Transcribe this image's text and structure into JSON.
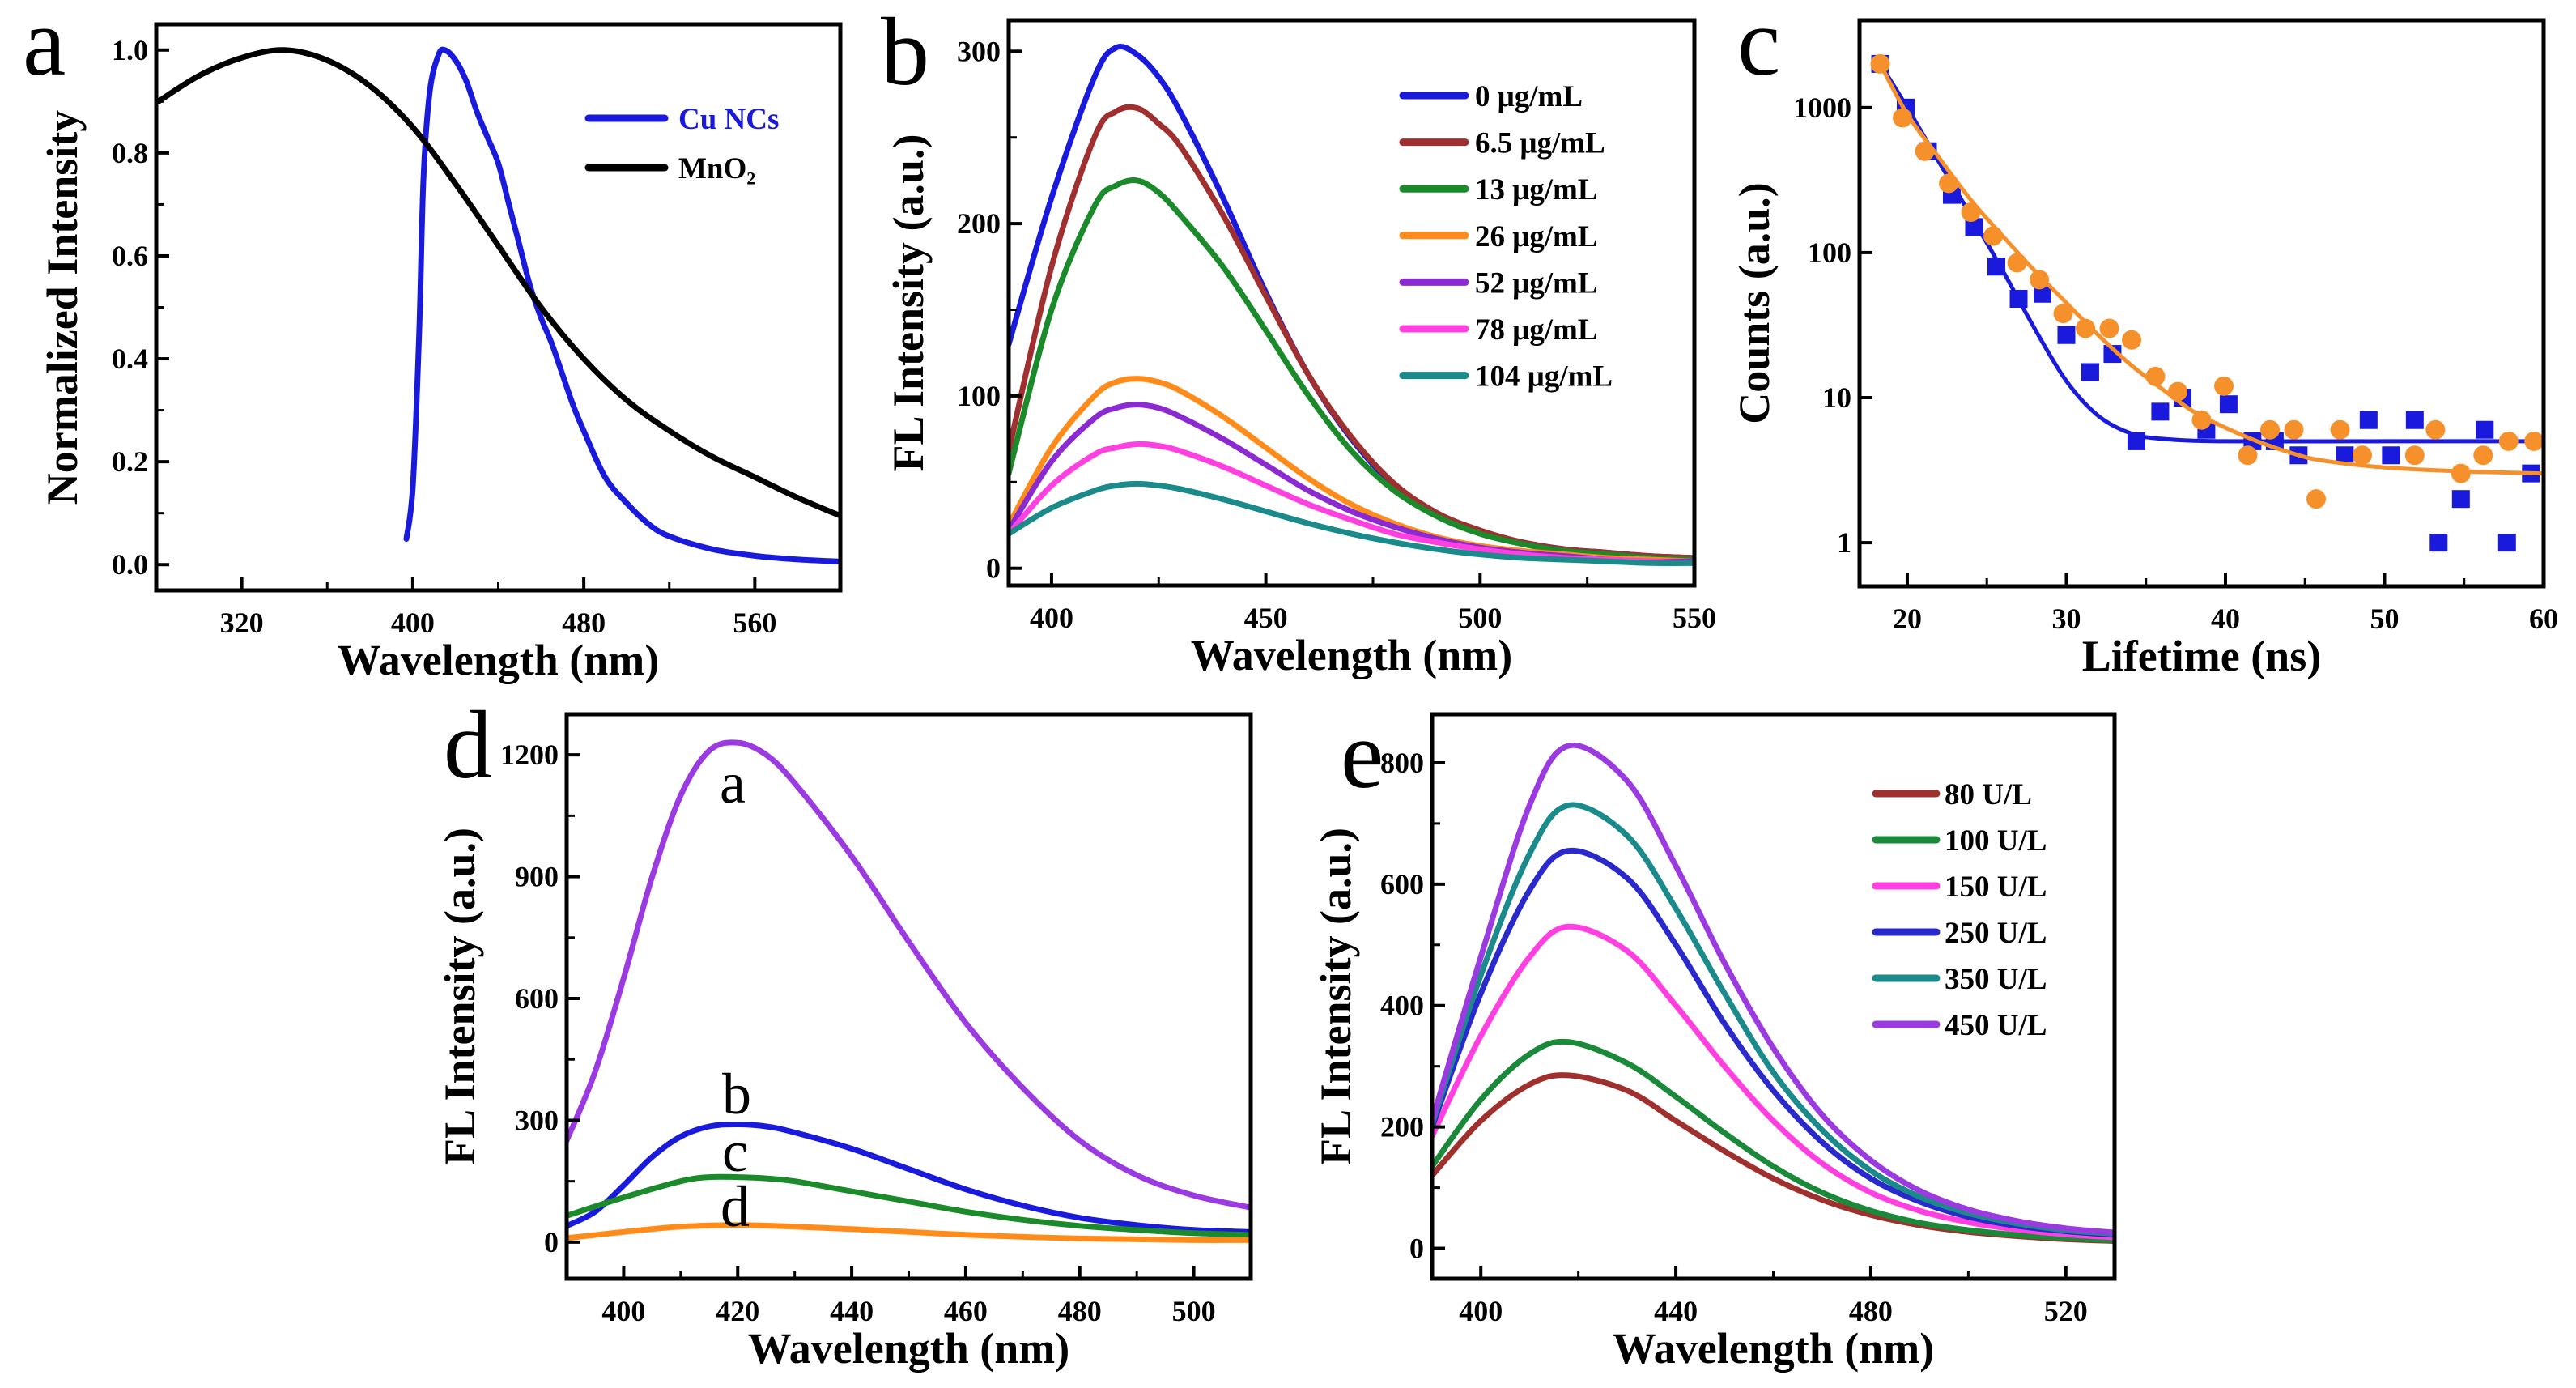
{
  "chart_data": [
    {
      "panel_label": "a",
      "type": "line",
      "xlabel": "Wavelength (nm)",
      "ylabel": "Normalized Intensity",
      "xlim": [
        280,
        600
      ],
      "ylim": [
        -0.05,
        1.05
      ],
      "xtick_labels": [
        "320",
        "400",
        "480",
        "560"
      ],
      "ytick_labels": [
        "0.0",
        "0.2",
        "0.4",
        "0.6",
        "0.8",
        "1.0"
      ],
      "yscale": "linear",
      "grid": false,
      "legend": "top-right",
      "series": [
        {
          "name": "Cu NCs",
          "color": "#1a1adc",
          "legend_text_color": "#1a1adc",
          "x": [
            397,
            400,
            403,
            405,
            408,
            412,
            415,
            420,
            425,
            430,
            435,
            440,
            445,
            450,
            455,
            460,
            465,
            470,
            475,
            480,
            490,
            500,
            510,
            520,
            540,
            560,
            580,
            600
          ],
          "y": [
            0.05,
            0.15,
            0.45,
            0.75,
            0.92,
            0.99,
            1.0,
            0.98,
            0.94,
            0.88,
            0.83,
            0.78,
            0.7,
            0.62,
            0.54,
            0.48,
            0.43,
            0.37,
            0.31,
            0.26,
            0.17,
            0.12,
            0.08,
            0.055,
            0.03,
            0.017,
            0.01,
            0.006
          ]
        },
        {
          "name": "MnO₂",
          "color": "#000000",
          "legend_text_color": "#000000",
          "x": [
            281,
            300,
            320,
            340,
            360,
            380,
            400,
            420,
            440,
            460,
            480,
            500,
            520,
            540,
            560,
            580,
            600
          ],
          "y": [
            0.9,
            0.95,
            0.985,
            1.0,
            0.98,
            0.93,
            0.85,
            0.74,
            0.62,
            0.5,
            0.4,
            0.32,
            0.26,
            0.21,
            0.17,
            0.13,
            0.095
          ]
        }
      ]
    },
    {
      "panel_label": "b",
      "type": "line",
      "xlabel": "Wavelength (nm)",
      "ylabel": "FL Intensity (a.u.)",
      "xlim": [
        390,
        550
      ],
      "ylim": [
        -10,
        318
      ],
      "xtick_labels": [
        "400",
        "450",
        "500",
        "550"
      ],
      "ytick_labels": [
        "0",
        "100",
        "200",
        "300"
      ],
      "yscale": "linear",
      "grid": false,
      "legend": "top-right",
      "series": [
        {
          "name": "0 μg/mL",
          "color": "#1a1adc",
          "x": [
            390,
            400,
            410,
            415,
            420,
            425,
            430,
            440,
            450,
            460,
            470,
            480,
            490,
            500,
            510,
            520,
            530,
            540,
            550
          ],
          "y": [
            130,
            215,
            285,
            302,
            298,
            285,
            265,
            215,
            160,
            112,
            75,
            48,
            31,
            21,
            15,
            11,
            9,
            7,
            6
          ]
        },
        {
          "name": "6.5 μg/mL",
          "color": "#a03030",
          "x": [
            390,
            400,
            410,
            415,
            420,
            425,
            430,
            440,
            450,
            460,
            470,
            480,
            490,
            500,
            510,
            520,
            530,
            540,
            550
          ],
          "y": [
            68,
            175,
            250,
            265,
            267,
            258,
            245,
            205,
            158,
            112,
            76,
            49,
            32,
            22,
            15,
            11,
            9,
            7,
            6
          ]
        },
        {
          "name": "13 μg/mL",
          "color": "#1a8a2a",
          "x": [
            390,
            400,
            410,
            415,
            420,
            425,
            430,
            440,
            450,
            460,
            470,
            480,
            490,
            500,
            510,
            520,
            530,
            540,
            550
          ],
          "y": [
            55,
            150,
            210,
            222,
            225,
            218,
            205,
            175,
            138,
            100,
            68,
            45,
            30,
            20,
            14,
            10,
            8,
            6,
            5
          ]
        },
        {
          "name": "26 μg/mL",
          "color": "#ff8c1a",
          "x": [
            390,
            400,
            410,
            415,
            420,
            425,
            430,
            440,
            450,
            460,
            470,
            480,
            490,
            500,
            510,
            520,
            530,
            540,
            550
          ],
          "y": [
            25,
            70,
            100,
            108,
            110,
            108,
            103,
            88,
            70,
            52,
            37,
            26,
            18,
            13,
            10,
            8,
            6,
            5,
            4
          ]
        },
        {
          "name": "52 μg/mL",
          "color": "#8a2ad0",
          "x": [
            390,
            400,
            410,
            415,
            420,
            425,
            430,
            440,
            450,
            460,
            470,
            480,
            490,
            500,
            510,
            520,
            530,
            540,
            550
          ],
          "y": [
            22,
            62,
            87,
            93,
            95,
            93,
            88,
            75,
            60,
            45,
            33,
            24,
            17,
            12,
            9,
            7,
            5,
            4,
            4
          ]
        },
        {
          "name": "78 μg/mL",
          "color": "#ff40e0",
          "x": [
            390,
            400,
            410,
            415,
            420,
            425,
            430,
            440,
            450,
            460,
            470,
            480,
            490,
            500,
            510,
            520,
            530,
            540,
            550
          ],
          "y": [
            20,
            48,
            66,
            70,
            72,
            71,
            68,
            59,
            48,
            37,
            28,
            20,
            15,
            11,
            8,
            6,
            5,
            4,
            3
          ]
        },
        {
          "name": "104 μg/mL",
          "color": "#1a8a8a",
          "x": [
            390,
            400,
            410,
            415,
            420,
            425,
            430,
            440,
            450,
            460,
            470,
            480,
            490,
            500,
            510,
            520,
            530,
            540,
            550
          ],
          "y": [
            20,
            35,
            45,
            48,
            49,
            48,
            46,
            40,
            33,
            26,
            20,
            15,
            11,
            8,
            6,
            5,
            4,
            3,
            3
          ]
        }
      ]
    },
    {
      "panel_label": "c",
      "type": "scatter",
      "xlabel": "Lifetime (ns)",
      "ylabel": "Counts (a.u.)",
      "xlim": [
        17,
        60
      ],
      "ylim": [
        0.5,
        4000
      ],
      "xtick_labels": [
        "20",
        "30",
        "40",
        "50",
        "60"
      ],
      "ytick_labels": [
        "1",
        "10",
        "100",
        "1000"
      ],
      "yscale": "log",
      "grid": false,
      "legend": "none",
      "series": [
        {
          "marker": "square",
          "color": "#1a1adc",
          "x": [
            18.3,
            19.9,
            21.3,
            22.8,
            24.2,
            25.6,
            27.0,
            28.5,
            30.0,
            31.5,
            32.9,
            34.4,
            35.9,
            37.3,
            38.8,
            40.2,
            41.7,
            43.1,
            44.6,
            47.5,
            49.0,
            50.4,
            51.9,
            53.4,
            54.8,
            56.3,
            57.7,
            59.2
          ],
          "y": [
            2000,
            1000,
            500,
            250,
            150,
            80,
            48,
            52,
            27,
            15,
            20,
            5,
            8,
            10,
            6,
            9,
            5,
            5,
            4,
            4,
            7,
            4,
            7,
            1,
            2,
            6,
            1,
            3
          ],
          "fit": {
            "x": [
              18.3,
              20,
              22,
              24,
              26,
              28,
              30,
              32,
              34,
              36,
              40,
              50,
              60
            ],
            "y": [
              2000,
              1000,
              420,
              180,
              75,
              30,
              13,
              7.5,
              5.7,
              5.2,
              5,
              5,
              5
            ]
          }
        },
        {
          "marker": "circle",
          "color": "#f5902a",
          "x": [
            18.3,
            19.7,
            21.1,
            22.6,
            24.0,
            25.4,
            26.9,
            28.3,
            29.8,
            31.2,
            32.7,
            34.1,
            35.6,
            37.0,
            38.5,
            39.9,
            41.4,
            42.8,
            44.3,
            45.7,
            47.2,
            48.6,
            51.9,
            53.2,
            54.8,
            56.2,
            57.8,
            59.4
          ],
          "y": [
            2000,
            850,
            500,
            300,
            190,
            130,
            85,
            65,
            38,
            30,
            30,
            25,
            14,
            11,
            7,
            12,
            4,
            6,
            6,
            2,
            6,
            4,
            4,
            6,
            3,
            4,
            5,
            5
          ],
          "fit": {
            "x": [
              18.3,
              20,
              22,
              24,
              26,
              28,
              30,
              32,
              34,
              36,
              38,
              40,
              42,
              44,
              46,
              50,
              55,
              60
            ],
            "y": [
              2000,
              900,
              450,
              230,
              130,
              75,
              45,
              27,
              17,
              11.5,
              8,
              6.2,
              5,
              4.2,
              3.7,
              3.3,
              3.1,
              3.0
            ]
          }
        }
      ]
    },
    {
      "panel_label": "d",
      "type": "line",
      "xlabel": "Wavelength (nm)",
      "ylabel": "FL Intensity (a.u.)",
      "xlim": [
        390,
        510
      ],
      "ylim": [
        -90,
        1300
      ],
      "xtick_labels": [
        "400",
        "420",
        "440",
        "460",
        "480",
        "500"
      ],
      "ytick_labels": [
        "0",
        "300",
        "600",
        "900",
        "1200"
      ],
      "yscale": "linear",
      "grid": false,
      "legend": "curve labels",
      "series": [
        {
          "name": "a",
          "color": "#9a3ae0",
          "x": [
            390,
            395,
            400,
            405,
            410,
            415,
            420,
            425,
            430,
            440,
            450,
            460,
            470,
            480,
            490,
            500,
            510
          ],
          "y": [
            250,
            420,
            650,
            900,
            1100,
            1210,
            1230,
            1200,
            1130,
            950,
            740,
            540,
            380,
            250,
            165,
            115,
            85
          ]
        },
        {
          "name": "b",
          "color": "#1a1adc",
          "x": [
            390,
            395,
            400,
            405,
            410,
            415,
            420,
            425,
            430,
            440,
            450,
            460,
            470,
            480,
            490,
            500,
            510
          ],
          "y": [
            40,
            75,
            140,
            210,
            260,
            285,
            290,
            285,
            270,
            230,
            180,
            130,
            90,
            60,
            42,
            30,
            25
          ]
        },
        {
          "name": "c",
          "color": "#1a8a2a",
          "x": [
            390,
            400,
            410,
            415,
            420,
            425,
            430,
            440,
            450,
            460,
            470,
            480,
            490,
            500,
            510
          ],
          "y": [
            65,
            110,
            150,
            160,
            160,
            157,
            150,
            125,
            100,
            75,
            55,
            40,
            30,
            22,
            18
          ]
        },
        {
          "name": "d",
          "color": "#ff8c1a",
          "x": [
            390,
            400,
            410,
            420,
            430,
            440,
            450,
            460,
            470,
            480,
            490,
            500,
            510
          ],
          "y": [
            10,
            25,
            38,
            42,
            38,
            32,
            25,
            18,
            13,
            9,
            7,
            5,
            5
          ]
        }
      ]
    },
    {
      "panel_label": "e",
      "type": "line",
      "xlabel": "Wavelength (nm)",
      "ylabel": "FL Intensity (a.u.)",
      "xlim": [
        390,
        530
      ],
      "ylim": [
        -50,
        880
      ],
      "xtick_labels": [
        "400",
        "440",
        "480",
        "520"
      ],
      "ytick_labels": [
        "0",
        "200",
        "400",
        "600",
        "800"
      ],
      "yscale": "linear",
      "grid": false,
      "legend": "top-right",
      "series": [
        {
          "name": "80 U/L",
          "color": "#a0302e",
          "x": [
            390,
            400,
            410,
            418,
            430,
            440,
            450,
            460,
            470,
            480,
            490,
            500,
            510,
            520,
            530
          ],
          "y": [
            120,
            210,
            270,
            285,
            260,
            210,
            160,
            115,
            80,
            55,
            38,
            27,
            20,
            15,
            12
          ]
        },
        {
          "name": "100 U/L",
          "color": "#1a8a3a",
          "x": [
            390,
            400,
            410,
            418,
            430,
            440,
            450,
            460,
            470,
            480,
            490,
            500,
            510,
            520,
            530
          ],
          "y": [
            135,
            245,
            320,
            340,
            305,
            250,
            190,
            135,
            92,
            62,
            42,
            30,
            22,
            17,
            13
          ]
        },
        {
          "name": "150 U/L",
          "color": "#ff3fe0",
          "x": [
            390,
            400,
            410,
            418,
            430,
            440,
            450,
            460,
            470,
            480,
            490,
            500,
            510,
            520,
            530
          ],
          "y": [
            185,
            350,
            480,
            530,
            490,
            400,
            300,
            210,
            140,
            92,
            62,
            43,
            31,
            23,
            18
          ]
        },
        {
          "name": "250 U/L",
          "color": "#2a2acc",
          "x": [
            390,
            400,
            410,
            418,
            430,
            440,
            450,
            460,
            470,
            480,
            490,
            500,
            510,
            520,
            530
          ],
          "y": [
            200,
            420,
            590,
            655,
            610,
            500,
            370,
            260,
            175,
            115,
            77,
            52,
            37,
            28,
            22
          ]
        },
        {
          "name": "350 U/L",
          "color": "#1a8a8a",
          "x": [
            390,
            400,
            410,
            418,
            430,
            440,
            450,
            460,
            470,
            480,
            490,
            500,
            510,
            520,
            530
          ],
          "y": [
            205,
            450,
            650,
            730,
            680,
            560,
            420,
            290,
            195,
            128,
            85,
            58,
            41,
            30,
            24
          ]
        },
        {
          "name": "450 U/L",
          "color": "#9a3ae0",
          "x": [
            390,
            400,
            410,
            418,
            430,
            440,
            450,
            460,
            470,
            480,
            490,
            500,
            510,
            520,
            530
          ],
          "y": [
            210,
            480,
            730,
            828,
            770,
            630,
            470,
            330,
            220,
            145,
            95,
            64,
            45,
            33,
            26
          ]
        }
      ]
    }
  ]
}
